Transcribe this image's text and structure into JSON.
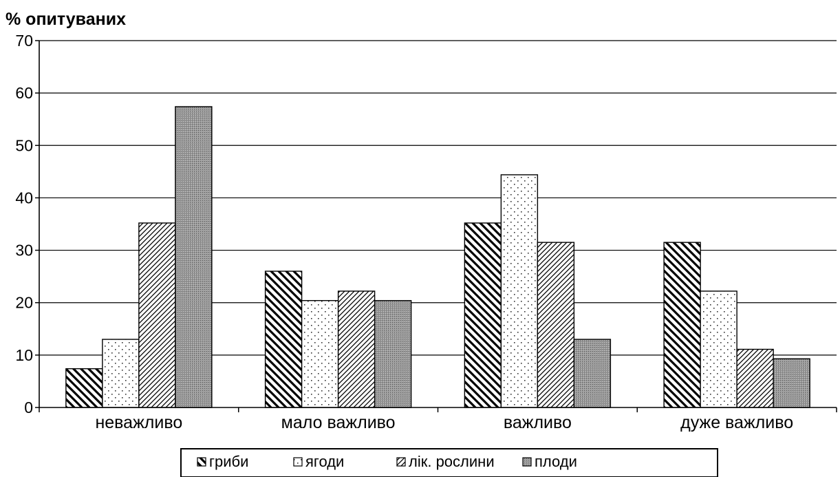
{
  "chart_data": {
    "type": "bar",
    "ylabel": "% опитуваних",
    "xlabel": "",
    "ylim": [
      0,
      70
    ],
    "yticks": [
      0,
      10,
      20,
      30,
      40,
      50,
      60,
      70
    ],
    "grid": true,
    "legend_position": "bottom",
    "categories": [
      "неважливо",
      "мало важливо",
      "важливо",
      "дуже важливо"
    ],
    "series": [
      {
        "name": "гриби",
        "pattern": "diagonal-back",
        "values": [
          7.4,
          26.0,
          35.2,
          31.5
        ]
      },
      {
        "name": "ягоди",
        "pattern": "dots",
        "values": [
          13.0,
          20.4,
          44.4,
          22.2
        ]
      },
      {
        "name": "лік. рослини",
        "pattern": "diagonal-forward",
        "values": [
          35.2,
          22.2,
          31.5,
          11.1
        ]
      },
      {
        "name": "плоди",
        "pattern": "dense-gray",
        "values": [
          57.4,
          20.4,
          13.0,
          9.3
        ]
      }
    ]
  }
}
